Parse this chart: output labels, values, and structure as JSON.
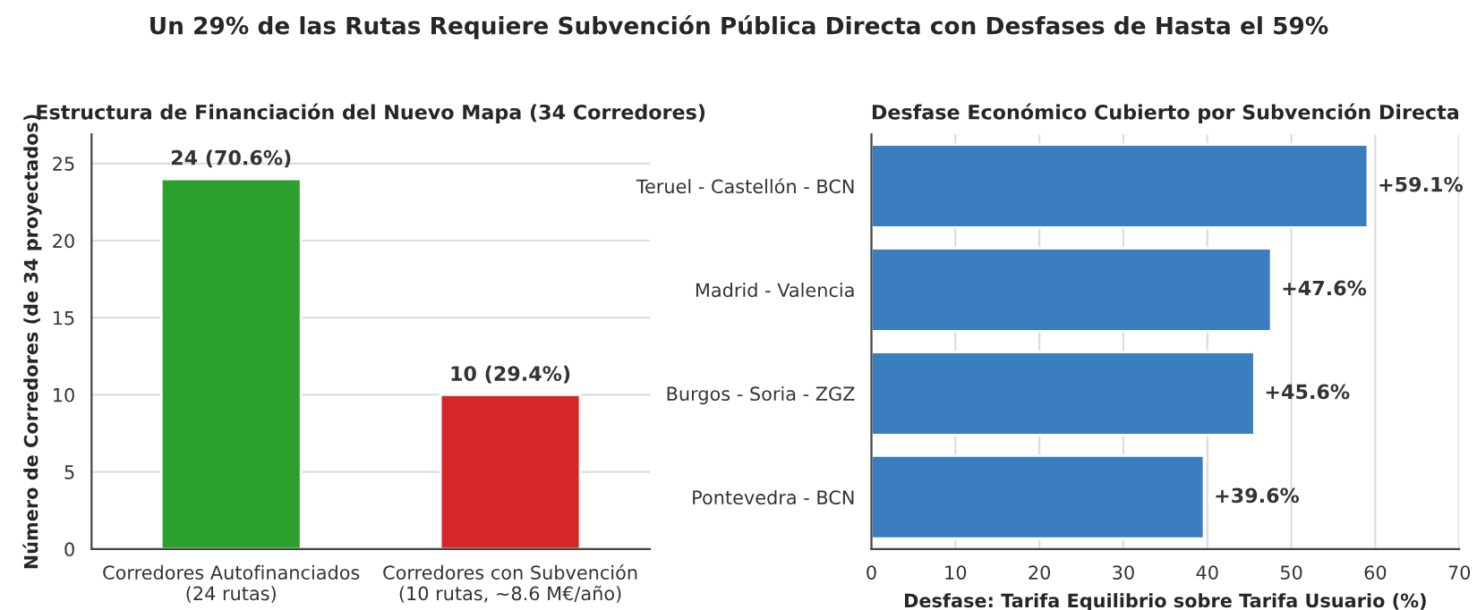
{
  "chart_data": [
    {
      "type": "bar",
      "title": "Estructura de Financiación del Nuevo Mapa (34 Corredores)",
      "ylabel": "Número de Corredores (de 34 proyectados)",
      "annotations": [
        "Un 29% de las Rutas Requiere Subvención Pública Directa con Desfases de Hasta el 59%"
      ],
      "categories": [
        "Corredores Autofinanciados\n(24 rutas)",
        "Corredores con Subvención\n(10 rutas, ~8.6 M€/año)"
      ],
      "values": [
        24,
        10
      ],
      "colors": [
        "#2ca02c",
        "#d62728"
      ],
      "value_labels": [
        "24 (70.6%)",
        "10 (29.4%)"
      ],
      "ylim": [
        0,
        26.9
      ],
      "yticks": [
        0,
        5,
        10,
        15,
        20,
        25
      ],
      "grid": "y",
      "legend": false
    },
    {
      "type": "bar",
      "orientation": "horizontal",
      "title": "Desfase Económico Cubierto por Subvención Directa",
      "xlabel": "Desfase: Tarifa Equilibrio sobre Tarifa Usuario (%)",
      "categories": [
        "Teruel - Castellón - BCN",
        "Madrid - Valencia",
        "Burgos - Soria - ZGZ",
        "Pontevedra - BCN"
      ],
      "values": [
        59.1,
        47.6,
        45.6,
        39.6
      ],
      "colors": [
        "#3a7ebf",
        "#3a7ebf",
        "#3a7ebf",
        "#3a7ebf"
      ],
      "value_labels": [
        "+59.1%",
        "+47.6%",
        "+45.6%",
        "+39.6%"
      ],
      "xlim": [
        0,
        70
      ],
      "xticks": [
        0,
        10,
        20,
        30,
        40,
        50,
        60,
        70
      ],
      "grid": "x",
      "legend": false
    }
  ]
}
